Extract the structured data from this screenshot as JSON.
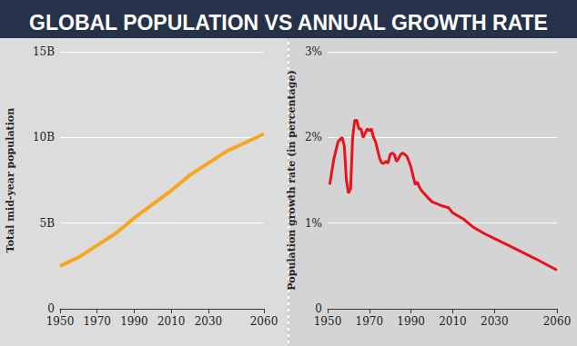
{
  "title": "GLOBAL POPULATION VS ANNUAL GROWTH RATE",
  "chart_data": [
    {
      "type": "line",
      "ylabel": "Total mid-year population",
      "color": "#f5a623",
      "x": [
        1950,
        1960,
        1970,
        1980,
        1990,
        2000,
        2010,
        2020,
        2030,
        2040,
        2050,
        2060
      ],
      "values": [
        2.5,
        3.0,
        3.7,
        4.4,
        5.3,
        6.1,
        6.9,
        7.8,
        8.5,
        9.2,
        9.7,
        10.2
      ],
      "xlim": [
        1950,
        2060
      ],
      "xticks": [
        1950,
        1970,
        1990,
        2010,
        2030,
        2060
      ],
      "ylim": [
        0,
        15
      ],
      "yticks": [
        0,
        {
          "value": 5,
          "label": "5B"
        },
        {
          "value": 10,
          "label": "10B"
        },
        {
          "value": 15,
          "label": "15B"
        }
      ],
      "grid": true
    },
    {
      "type": "line",
      "ylabel": "Population growth rate (in percentage)",
      "color": "#e8141b",
      "x": [
        1951,
        1952,
        1953,
        1955,
        1957,
        1958,
        1959,
        1960,
        1961,
        1962,
        1963,
        1964,
        1965,
        1966,
        1967,
        1968,
        1969,
        1970,
        1971,
        1972,
        1973,
        1974,
        1975,
        1976,
        1977,
        1978,
        1979,
        1980,
        1981,
        1982,
        1983,
        1984,
        1985,
        1986,
        1987,
        1988,
        1989,
        1990,
        1991,
        1992,
        1993,
        1994,
        1995,
        1998,
        2000,
        2005,
        2008,
        2010,
        2015,
        2020,
        2025,
        2030,
        2040,
        2050,
        2060
      ],
      "values": [
        1.45,
        1.6,
        1.75,
        1.95,
        2.0,
        1.9,
        1.5,
        1.35,
        1.4,
        2.0,
        2.2,
        2.2,
        2.1,
        2.1,
        2.0,
        2.05,
        2.1,
        2.08,
        2.1,
        2.0,
        1.95,
        1.85,
        1.75,
        1.7,
        1.7,
        1.72,
        1.7,
        1.8,
        1.82,
        1.8,
        1.72,
        1.75,
        1.8,
        1.82,
        1.8,
        1.78,
        1.72,
        1.65,
        1.55,
        1.45,
        1.48,
        1.42,
        1.38,
        1.3,
        1.25,
        1.2,
        1.18,
        1.12,
        1.05,
        0.95,
        0.88,
        0.82,
        0.7,
        0.58,
        0.45
      ],
      "xlim": [
        1950,
        2060
      ],
      "xticks": [
        1950,
        1970,
        1990,
        2010,
        2030,
        2060
      ],
      "ylim": [
        0,
        3
      ],
      "yticks": [
        0,
        {
          "value": 1,
          "label": "1%"
        },
        {
          "value": 2,
          "label": "2%"
        },
        {
          "value": 3,
          "label": "3%"
        }
      ],
      "grid": true
    }
  ]
}
